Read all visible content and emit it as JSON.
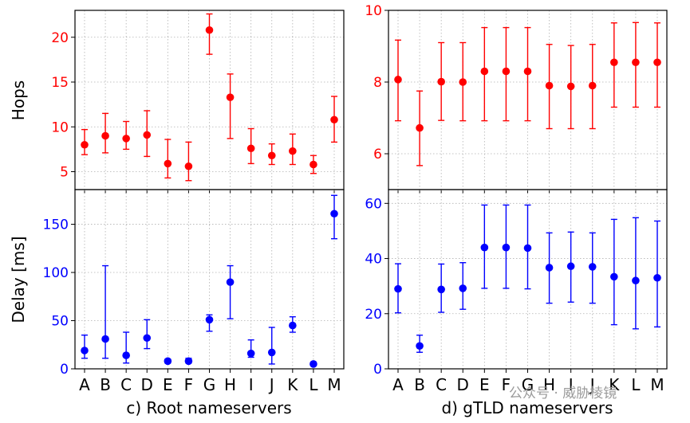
{
  "watermark": "公众号 · 威胁棱镜",
  "chart_data": [
    {
      "id": "root-hops",
      "type": "scatter",
      "errorbars": true,
      "title": "",
      "xlabel": "",
      "ylabel": "Hops",
      "categories": [
        "A",
        "B",
        "C",
        "D",
        "E",
        "F",
        "G",
        "H",
        "I",
        "J",
        "K",
        "L",
        "M"
      ],
      "ylim": [
        3,
        23
      ],
      "yticks": [
        5,
        10,
        15,
        20
      ],
      "color": "#ff0000",
      "grid": true,
      "series": [
        {
          "values": [
            8.0,
            9.0,
            8.7,
            9.1,
            5.9,
            5.6,
            20.8,
            13.3,
            7.6,
            6.8,
            7.3,
            5.8,
            10.8
          ],
          "err_low": [
            6.9,
            7.1,
            7.5,
            6.7,
            4.3,
            4.0,
            18.1,
            8.7,
            5.9,
            5.8,
            5.8,
            4.8,
            8.3
          ],
          "err_high": [
            9.7,
            11.5,
            10.6,
            11.8,
            8.6,
            8.3,
            22.6,
            15.9,
            9.8,
            8.1,
            9.2,
            6.8,
            13.4
          ]
        }
      ]
    },
    {
      "id": "gtld-hops",
      "type": "scatter",
      "errorbars": true,
      "title": "",
      "xlabel": "",
      "ylabel": "",
      "categories": [
        "A",
        "B",
        "C",
        "D",
        "E",
        "F",
        "G",
        "H",
        "I",
        "J",
        "K",
        "L",
        "M"
      ],
      "ylim": [
        5.0,
        10.0
      ],
      "yticks": [
        6,
        8,
        10
      ],
      "color": "#ff0000",
      "grid": true,
      "series": [
        {
          "values": [
            8.07,
            6.72,
            8.01,
            8.0,
            8.3,
            8.3,
            8.3,
            7.9,
            7.88,
            7.9,
            8.55,
            8.55,
            8.55
          ],
          "err_low": [
            6.92,
            5.67,
            6.93,
            6.92,
            6.92,
            6.92,
            6.92,
            6.7,
            6.7,
            6.7,
            7.3,
            7.3,
            7.3
          ],
          "err_high": [
            9.17,
            7.75,
            9.1,
            9.1,
            9.52,
            9.52,
            9.52,
            9.05,
            9.02,
            9.05,
            9.65,
            9.66,
            9.65
          ]
        }
      ]
    },
    {
      "id": "root-delay",
      "type": "scatter",
      "errorbars": true,
      "title": "",
      "xlabel": "c) Root nameservers",
      "ylabel": "Delay [ms]",
      "categories": [
        "A",
        "B",
        "C",
        "D",
        "E",
        "F",
        "G",
        "H",
        "I",
        "J",
        "K",
        "L",
        "M"
      ],
      "ylim": [
        0,
        186
      ],
      "yticks": [
        0,
        50,
        100,
        150
      ],
      "color": "#0000ff",
      "grid": true,
      "series": [
        {
          "values": [
            19,
            31,
            14,
            32,
            8,
            8,
            51,
            90,
            16,
            17,
            45,
            5,
            161
          ],
          "err_low": [
            11,
            11,
            6,
            21,
            6,
            6,
            39,
            52,
            12,
            5,
            38,
            4,
            135
          ],
          "err_high": [
            35,
            107,
            38,
            51,
            10,
            11,
            56,
            107,
            30,
            43,
            54,
            7,
            180
          ]
        }
      ]
    },
    {
      "id": "gtld-delay",
      "type": "scatter",
      "errorbars": true,
      "title": "",
      "xlabel": "d) gTLD nameservers",
      "ylabel": "",
      "categories": [
        "A",
        "B",
        "C",
        "D",
        "E",
        "F",
        "G",
        "H",
        "I",
        "J",
        "K",
        "L",
        "M"
      ],
      "ylim": [
        0,
        65
      ],
      "yticks": [
        0,
        20,
        40,
        60
      ],
      "color": "#0000ff",
      "grid": true,
      "series": [
        {
          "values": [
            29.0,
            8.3,
            28.8,
            29.2,
            44.0,
            44.0,
            43.8,
            36.7,
            37.2,
            37.0,
            33.4,
            32.0,
            33.0
          ],
          "err_low": [
            20.3,
            6.0,
            20.5,
            21.6,
            29.2,
            29.2,
            29.0,
            23.8,
            24.2,
            23.8,
            16.0,
            14.5,
            15.2
          ],
          "err_high": [
            38.1,
            12.2,
            38.0,
            38.5,
            59.4,
            59.4,
            59.4,
            49.3,
            49.6,
            49.3,
            54.2,
            54.8,
            53.6
          ]
        }
      ]
    }
  ]
}
